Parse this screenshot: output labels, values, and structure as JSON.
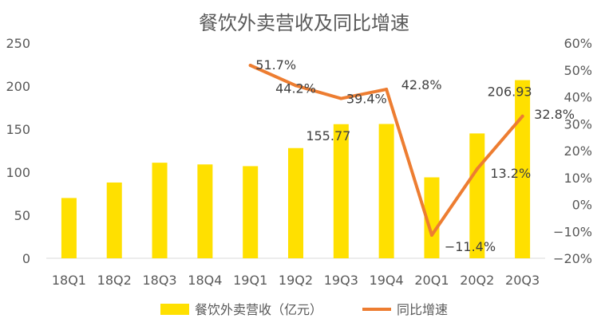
{
  "chart_data": {
    "type": "bar",
    "title": "餐饮外卖营收及同比增速",
    "categories": [
      "18Q1",
      "18Q2",
      "18Q3",
      "18Q4",
      "19Q1",
      "19Q2",
      "19Q3",
      "19Q4",
      "20Q1",
      "20Q2",
      "20Q3"
    ],
    "series": [
      {
        "name": "餐饮外卖营收（亿元）",
        "type": "bar",
        "axis": "left",
        "color": "#FFE000",
        "values": [
          70,
          88,
          111,
          109,
          107,
          128,
          155.77,
          156,
          94,
          145,
          206.93
        ],
        "labels": [
          "",
          "",
          "",
          "",
          "",
          "",
          "155.77",
          "",
          "",
          "",
          "206.93"
        ]
      },
      {
        "name": "同比增速",
        "type": "line",
        "axis": "right",
        "color": "#ED7D31",
        "values": [
          null,
          null,
          null,
          null,
          51.7,
          44.2,
          39.4,
          42.8,
          -11.4,
          13.2,
          32.8
        ],
        "labels": [
          "",
          "",
          "",
          "",
          "51.7%",
          "44.2%",
          "39.4%",
          "42.8%",
          "−11.4%",
          "13.2%",
          "32.8%"
        ]
      }
    ],
    "y_left": {
      "min": 0,
      "max": 250,
      "step": 50,
      "ticks": [
        "0",
        "50",
        "100",
        "150",
        "200",
        "250"
      ]
    },
    "y_right": {
      "min": -20,
      "max": 60,
      "step": 10,
      "ticks": [
        "−20%",
        "−10%",
        "0%",
        "10%",
        "20%",
        "30%",
        "40%",
        "50%",
        "60%"
      ]
    },
    "grid": false,
    "legend": "bottom"
  }
}
